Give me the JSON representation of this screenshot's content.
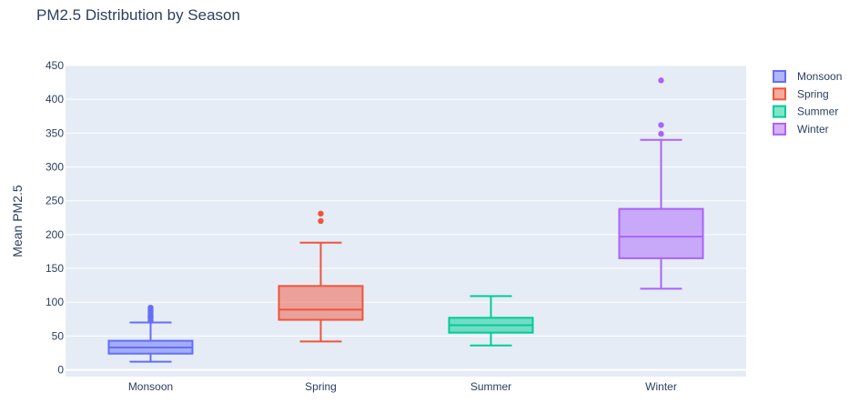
{
  "chart_data": {
    "type": "box",
    "title": "PM2.5 Distribution by Season",
    "xlabel": "",
    "ylabel": "Mean PM2.5",
    "ylim": [
      -10,
      450
    ],
    "yticks": [
      0,
      50,
      100,
      150,
      200,
      250,
      300,
      350,
      400,
      450
    ],
    "grid": true,
    "legend_position": "top-right",
    "categories": [
      "Monsoon",
      "Spring",
      "Summer",
      "Winter"
    ],
    "series": [
      {
        "name": "Monsoon",
        "color": "#636efa",
        "min": 12,
        "q1": 24,
        "median": 33,
        "q3": 43,
        "max": 70,
        "outliers": [
          73,
          76,
          78,
          80,
          83,
          86,
          89,
          92
        ]
      },
      {
        "name": "Spring",
        "color": "#ef553b",
        "min": 42,
        "q1": 74,
        "median": 89,
        "q3": 124,
        "max": 188,
        "outliers": [
          220,
          231
        ]
      },
      {
        "name": "Summer",
        "color": "#00cc96",
        "min": 36,
        "q1": 55,
        "median": 66,
        "q3": 77,
        "max": 109,
        "outliers": []
      },
      {
        "name": "Winter",
        "color": "#ab63fa",
        "min": 120,
        "q1": 165,
        "median": 197,
        "q3": 238,
        "max": 340,
        "outliers": [
          349,
          362,
          428
        ]
      }
    ]
  }
}
